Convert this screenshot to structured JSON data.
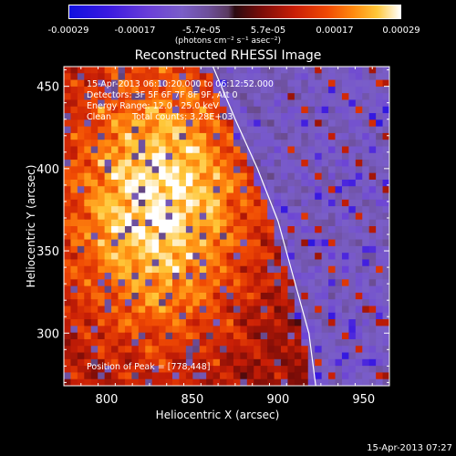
{
  "colorbar": {
    "ticks": [
      "-0.00029",
      "-0.00017",
      "-5.7e-05",
      "5.7e-05",
      "0.00017",
      "0.00029"
    ],
    "unit": "(photons cm⁻² s⁻¹ asec⁻²)"
  },
  "chart_data": {
    "type": "heatmap",
    "title": "Reconstructed RHESSI Image",
    "xlabel": "Heliocentric X (arcsec)",
    "ylabel": "Heliocentric Y (arcsec)",
    "xlim": [
      775,
      965
    ],
    "ylim": [
      268,
      462
    ],
    "xticks": [
      800,
      850,
      900,
      950
    ],
    "yticks": [
      300,
      350,
      400,
      450
    ],
    "annotations": {
      "time_range": "15-Apr-2013 06:10:20.000 to 06:12:52.000",
      "detectors": "Detectors: 3F 5F 6F 7F 8F 9F, Att 0",
      "energy_range": "Energy Range: 12.0 - 25.0 keV",
      "clean": "Clean",
      "total_counts": "Total counts: 3.28E+03",
      "peak": "Position of Peak = [778,448]"
    },
    "limb_curve": [
      [
        862,
        462
      ],
      [
        875,
        430
      ],
      [
        888,
        400
      ],
      [
        900,
        368
      ],
      [
        910,
        330
      ],
      [
        918,
        300
      ],
      [
        922,
        268
      ]
    ]
  },
  "footer": {
    "timestamp": "15-Apr-2013 07:27"
  }
}
